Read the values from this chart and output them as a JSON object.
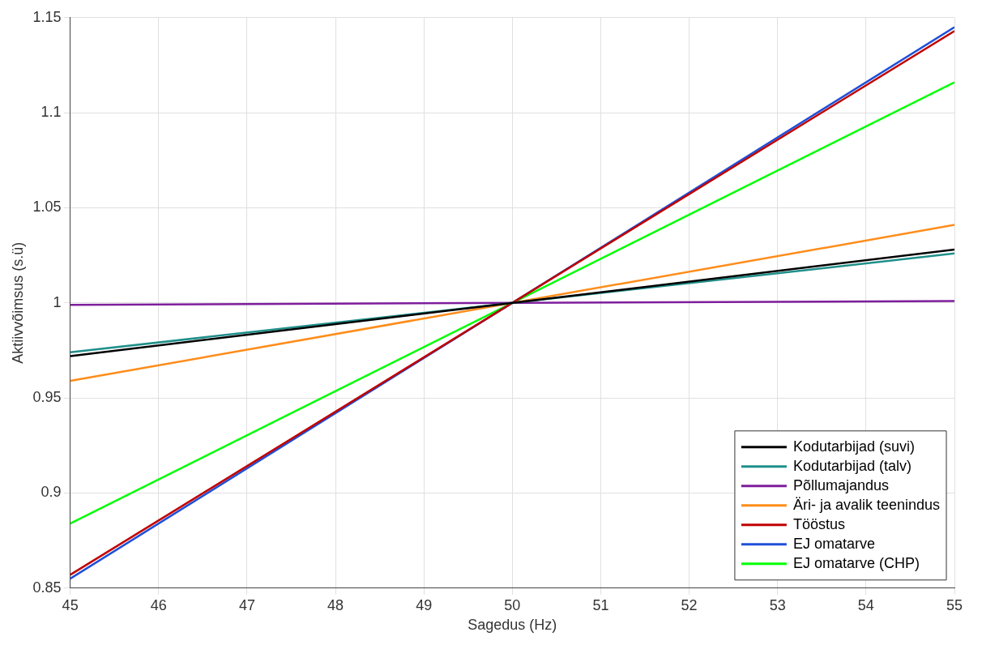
{
  "chart_data": {
    "type": "line",
    "xlabel": "Sagedus (Hz)",
    "ylabel": "Aktiivvõimsus (s.ü)",
    "x": [
      45,
      55
    ],
    "series": [
      {
        "name": "Kodutarbijad (suvi)",
        "color": "#000000",
        "values": [
          0.972,
          1.028
        ]
      },
      {
        "name": "Kodutarbijad (talv)",
        "color": "#1f8f8a",
        "values": [
          0.974,
          1.026
        ]
      },
      {
        "name": "Põllumajandus",
        "color": "#7e1e9c",
        "values": [
          0.999,
          1.001
        ]
      },
      {
        "name": "Äri- ja avalik teenindus",
        "color": "#ff8c1a",
        "values": [
          0.959,
          1.041
        ]
      },
      {
        "name": "Tööstus",
        "color": "#c00000",
        "values": [
          0.857,
          1.143
        ]
      },
      {
        "name": "EJ omatarve",
        "color": "#1f4fd8",
        "values": [
          0.855,
          1.145
        ]
      },
      {
        "name": "EJ omatarve (CHP)",
        "color": "#00ff00",
        "values": [
          0.884,
          1.116
        ]
      }
    ],
    "xlim": [
      45,
      55
    ],
    "xticks": [
      45,
      46,
      47,
      48,
      49,
      50,
      51,
      52,
      53,
      54,
      55
    ],
    "ylim": [
      0.85,
      1.15
    ],
    "yticks": [
      0.85,
      0.9,
      0.95,
      1,
      1.05,
      1.1,
      1.15
    ],
    "grid": true,
    "legend": "bottom right",
    "marker": "none",
    "line_style": "solid"
  }
}
